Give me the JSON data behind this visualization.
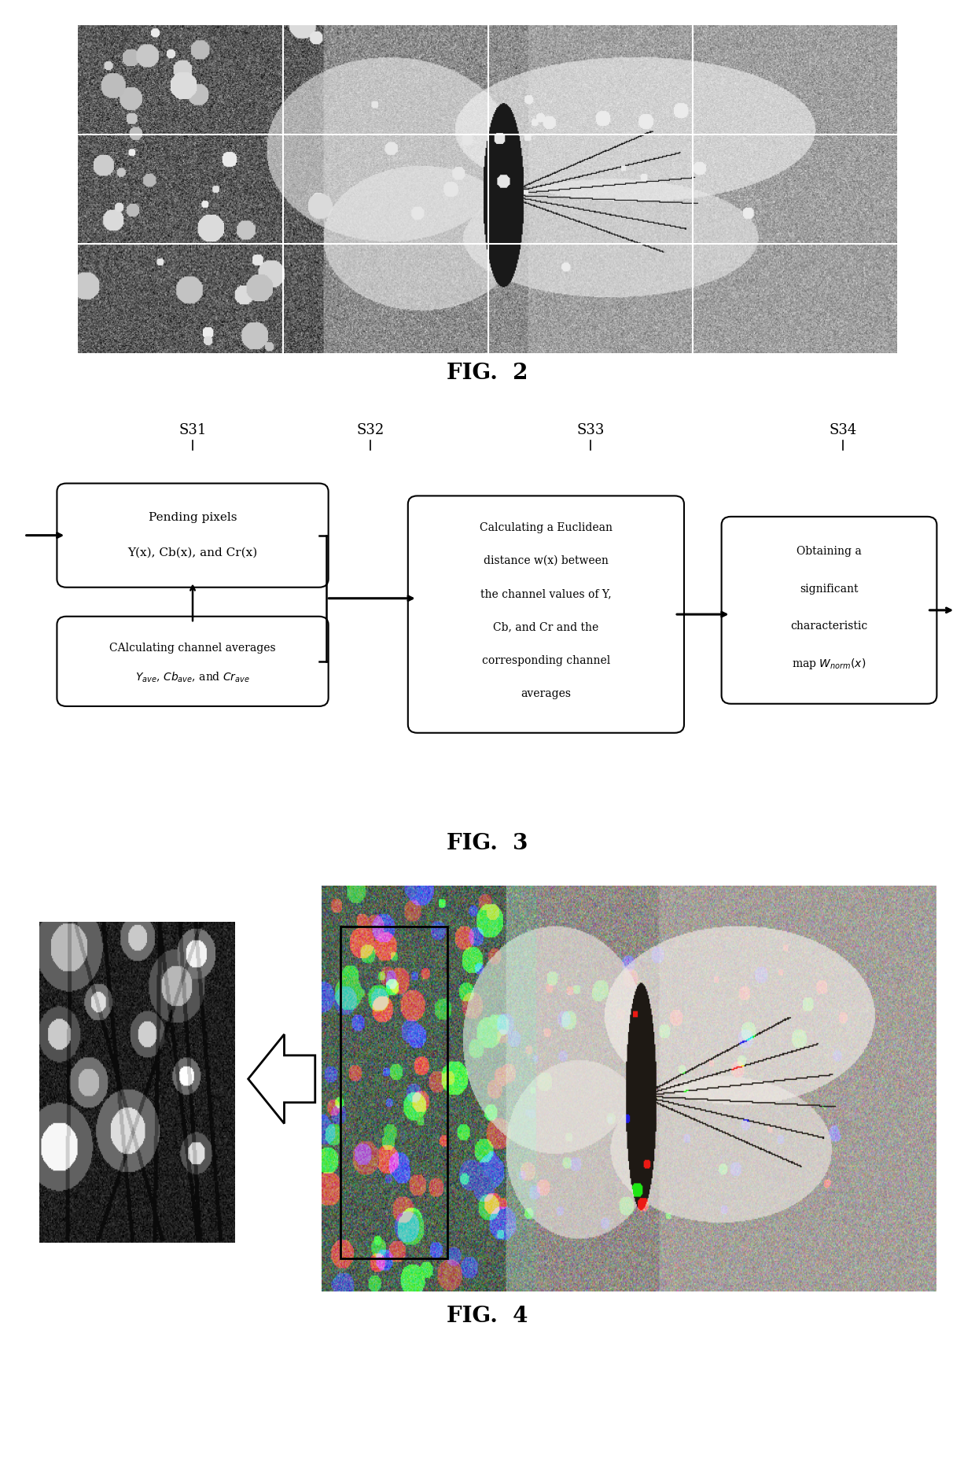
{
  "fig_width": 12.4,
  "fig_height": 18.55,
  "bg_color": "#ffffff",
  "fig2_label": "FIG.  2",
  "fig3_label": "FIG.  3",
  "fig4_label": "FIG.  4",
  "flowchart": {
    "s31_label": "S31",
    "s32_label": "S32",
    "s33_label": "S33",
    "s34_label": "S34"
  }
}
